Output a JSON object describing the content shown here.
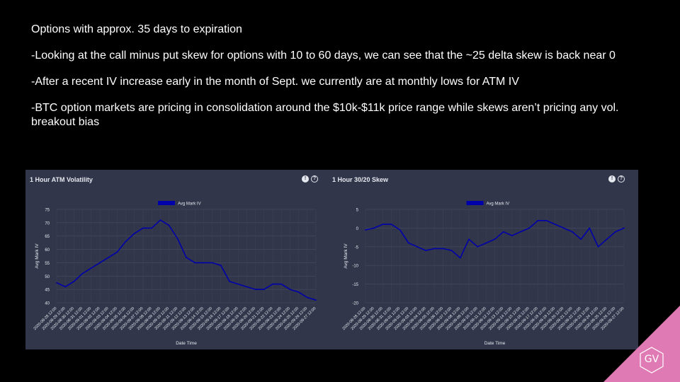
{
  "notes": [
    "Options with approx. 35 days to expiration",
    "-Looking at the call minus put skew for options with 10 to 60 days, we can see that the ~25 delta skew is back near 0",
    "-After a recent IV increase early in the month of Sept. we currently are at monthly lows for ATM IV",
    "-BTC option markets are pricing in consolidation around the $10k-$11k price range while skews aren’t pricing any vol. breakout bias"
  ],
  "logo": {
    "text": "GV",
    "color": "#e07ab5"
  },
  "chart_data": [
    {
      "type": "line",
      "title": "1 Hour ATM Volatility",
      "legend": "Avg Mark IV",
      "legend_position": "top-center",
      "xlabel": "Date Time",
      "ylabel": "Avg Mark IV",
      "ylim": [
        40,
        75
      ],
      "yticks": [
        40,
        45,
        50,
        55,
        60,
        65,
        70,
        75
      ],
      "grid": true,
      "color": "#0000aa",
      "x": [
        "2020-08-28 12:00",
        "2020-08-29 12:00",
        "2020-08-30 12:00",
        "2020-08-31 12:00",
        "2020-09-01 12:00",
        "2020-09-02 12:00",
        "2020-09-03 12:00",
        "2020-09-04 12:00",
        "2020-09-05 12:00",
        "2020-09-06 12:00",
        "2020-09-07 12:00",
        "2020-09-08 12:00",
        "2020-09-09 12:00",
        "2020-09-10 12:00",
        "2020-09-11 12:00",
        "2020-09-12 12:00",
        "2020-09-13 12:00",
        "2020-09-14 12:00",
        "2020-09-15 12:00",
        "2020-09-16 12:00",
        "2020-09-17 12:00",
        "2020-09-18 12:00",
        "2020-09-19 12:00",
        "2020-09-20 12:00",
        "2020-09-21 12:00",
        "2020-09-22 12:00",
        "2020-09-23 12:00",
        "2020-09-24 12:00",
        "2020-09-25 12:00",
        "2020-09-26 12:00",
        "2020-09-27 12:00"
      ],
      "values": [
        47.5,
        46,
        48,
        51,
        53,
        55,
        57,
        59,
        63,
        66,
        68,
        68,
        71,
        69,
        64,
        57,
        55,
        55,
        55,
        54,
        48,
        47,
        46,
        45,
        45,
        47,
        47,
        45,
        44,
        42,
        41
      ]
    },
    {
      "type": "line",
      "title": "1 Hour 30/20 Skew",
      "legend": "Avg Mark IV",
      "legend_position": "top-center",
      "xlabel": "Date Time",
      "ylabel": "Avg Mark IV",
      "ylim": [
        -20,
        5
      ],
      "yticks": [
        -20,
        -15,
        -10,
        -5,
        0,
        5
      ],
      "grid": true,
      "color": "#0000aa",
      "x": [
        "2020-08-28 12:00",
        "2020-08-29 12:00",
        "2020-08-30 12:00",
        "2020-08-31 12:00",
        "2020-09-01 12:00",
        "2020-09-02 12:00",
        "2020-09-03 12:00",
        "2020-09-04 12:00",
        "2020-09-05 12:00",
        "2020-09-06 12:00",
        "2020-09-07 12:00",
        "2020-09-08 12:00",
        "2020-09-09 12:00",
        "2020-09-10 12:00",
        "2020-09-11 12:00",
        "2020-09-12 12:00",
        "2020-09-13 12:00",
        "2020-09-14 12:00",
        "2020-09-15 12:00",
        "2020-09-16 12:00",
        "2020-09-17 12:00",
        "2020-09-18 12:00",
        "2020-09-19 12:00",
        "2020-09-20 12:00",
        "2020-09-21 12:00",
        "2020-09-22 12:00",
        "2020-09-23 12:00",
        "2020-09-24 12:00",
        "2020-09-25 12:00",
        "2020-09-26 12:00",
        "2020-09-27 12:00"
      ],
      "values": [
        -0.5,
        0,
        1,
        1,
        -0.5,
        -4,
        -5,
        -6,
        -5.5,
        -5.5,
        -6,
        -8,
        -3,
        -5,
        -4,
        -3,
        -1,
        -2,
        -1,
        0,
        2,
        2,
        1,
        0,
        -1,
        -3,
        0,
        -5,
        -3,
        -1,
        0
      ]
    }
  ]
}
